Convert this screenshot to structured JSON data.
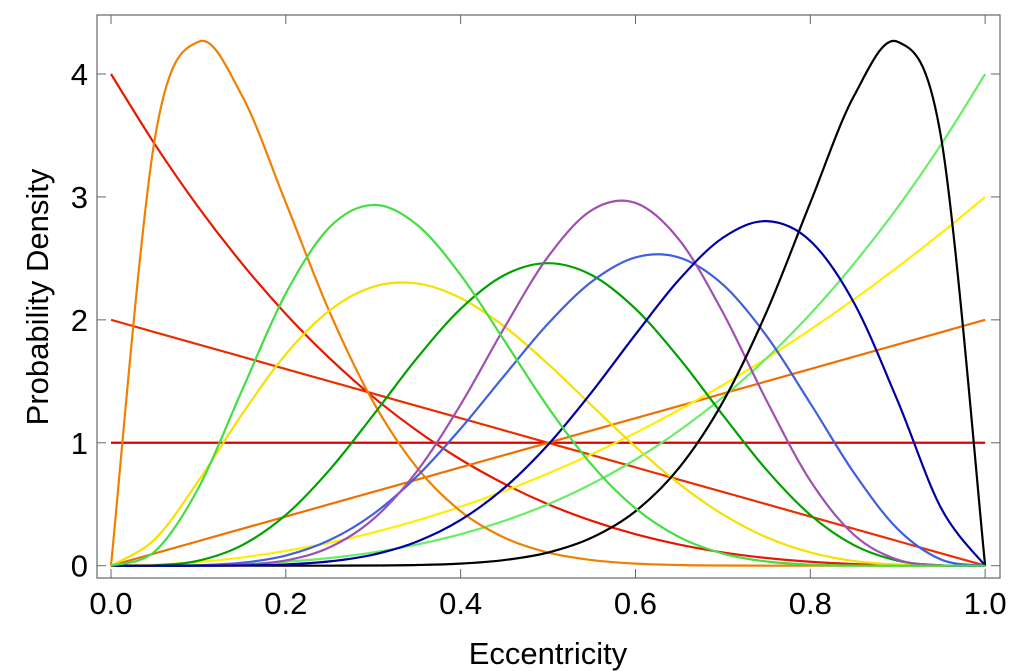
{
  "chart_data": {
    "type": "line",
    "xlabel": "Eccentricity",
    "ylabel": "Probability Density",
    "xlim": [
      -0.016,
      1.017
    ],
    "ylim": [
      -0.1,
      4.48
    ],
    "xticks": [
      {
        "value": 0,
        "label": "0.0"
      },
      0.2,
      0.4,
      0.6,
      0.8,
      {
        "value": 1,
        "label": "1.0"
      }
    ],
    "yticks": [
      0,
      1,
      2,
      3,
      4
    ],
    "x": [
      0,
      0.05,
      0.1,
      0.15,
      0.2,
      0.25,
      0.3,
      0.35,
      0.4,
      0.45,
      0.5,
      0.55,
      0.6,
      0.65,
      0.7,
      0.75,
      0.8,
      0.85,
      0.9,
      0.95,
      1
    ],
    "series": [
      {
        "color": "#e00000",
        "values": [
          1,
          1,
          1,
          1,
          1,
          1,
          1,
          1,
          1,
          1,
          1,
          1,
          1,
          1,
          1,
          1,
          1,
          1,
          1,
          1,
          1
        ]
      },
      {
        "color": "#e83000",
        "values": [
          2,
          1.9,
          1.8,
          1.7,
          1.6,
          1.5,
          1.4,
          1.3,
          1.2,
          1.1,
          1,
          0.9,
          0.8,
          0.7,
          0.6,
          0.5,
          0.4,
          0.3,
          0.2,
          0.1,
          0
        ]
      },
      {
        "color": "#e81800",
        "values": [
          4,
          3.43,
          2.916,
          2.457,
          2.048,
          1.688,
          1.372,
          1.099,
          0.864,
          0.666,
          0.5,
          0.365,
          0.256,
          0.172,
          0.108,
          0.0625,
          0.032,
          0.0135,
          0.004,
          0.0005,
          0
        ]
      },
      {
        "color": "#f07000",
        "values": [
          0,
          0.1,
          0.2,
          0.3,
          0.4,
          0.5,
          0.6,
          0.7,
          0.8,
          0.9,
          1,
          1.1,
          1.2,
          1.3,
          1.4,
          1.5,
          1.6,
          1.7,
          1.8,
          1.9,
          2
        ]
      },
      {
        "color": "#ffee00",
        "values": [
          0,
          0.0075,
          0.03,
          0.0675,
          0.12,
          0.1875,
          0.27,
          0.3675,
          0.48,
          0.6075,
          0.75,
          0.9075,
          1.08,
          1.2675,
          1.47,
          1.6875,
          1.92,
          2.1675,
          2.43,
          2.7075,
          3
        ]
      },
      {
        "color": "#66ee66",
        "values": [
          0,
          0.0005,
          0.004,
          0.0135,
          0.032,
          0.0625,
          0.108,
          0.172,
          0.256,
          0.365,
          0.5,
          0.666,
          0.864,
          1.099,
          1.372,
          1.688,
          2.048,
          2.457,
          2.916,
          3.43,
          4
        ]
      },
      {
        "color": "#f08000",
        "values": [
          0,
          3.466,
          4.262,
          3.822,
          2.953,
          2.065,
          1.332,
          0.797,
          0.443,
          0.228,
          0.107,
          0.046,
          0.017,
          0.0056,
          0.0015,
          0.0003,
          0,
          0,
          0,
          0,
          0
        ]
      },
      {
        "color": "#f5e000",
        "values": [
          0,
          0.214,
          0.689,
          1.233,
          1.72,
          2.076,
          2.269,
          2.296,
          2.177,
          1.946,
          1.641,
          1.303,
          0.968,
          0.666,
          0.417,
          0.231,
          0.108,
          0.038,
          0.009,
          0.001,
          0
        ]
      },
      {
        "color": "#00a000",
        "values": [
          0,
          0.003,
          0.041,
          0.167,
          0.413,
          0.779,
          1.225,
          1.688,
          2.09,
          2.364,
          2.461,
          2.364,
          2.09,
          1.688,
          1.225,
          0.779,
          0.413,
          0.167,
          0.041,
          0.003,
          0
        ]
      },
      {
        "color": "#4060e0",
        "values": [
          0,
          0,
          0.004,
          0.024,
          0.083,
          0.208,
          0.42,
          0.727,
          1.115,
          1.547,
          1.969,
          2.311,
          2.508,
          2.507,
          2.287,
          1.869,
          1.321,
          0.755,
          0.298,
          0.049,
          0
        ]
      },
      {
        "color": "#a050b0",
        "values": [
          0,
          0,
          0.001,
          0.008,
          0.043,
          0.149,
          0.379,
          0.768,
          1.311,
          1.936,
          2.514,
          2.892,
          2.951,
          2.651,
          2.06,
          1.343,
          0.691,
          0.251,
          0.049,
          0.002,
          0
        ]
      },
      {
        "color": "#000000",
        "values": [
          0,
          0,
          0,
          0,
          0,
          0.0003,
          0.0015,
          0.0056,
          0.017,
          0.046,
          0.107,
          0.228,
          0.443,
          0.797,
          1.332,
          2.065,
          2.953,
          3.822,
          4.262,
          3.466,
          0
        ]
      },
      {
        "color": "#0000a0",
        "values": [
          0,
          0,
          0,
          0.002,
          0.01,
          0.035,
          0.09,
          0.196,
          0.372,
          0.633,
          0.984,
          1.413,
          1.881,
          2.328,
          2.668,
          2.803,
          2.642,
          2.138,
          1.339,
          0.463,
          0
        ]
      },
      {
        "color": "#44dd44",
        "values": [
          0,
          0.115,
          0.631,
          1.428,
          2.215,
          2.753,
          2.935,
          2.774,
          2.365,
          1.831,
          1.289,
          0.821,
          0.467,
          0.233,
          0.099,
          0.034,
          0.009,
          0.001,
          0,
          0,
          0
        ]
      }
    ]
  }
}
